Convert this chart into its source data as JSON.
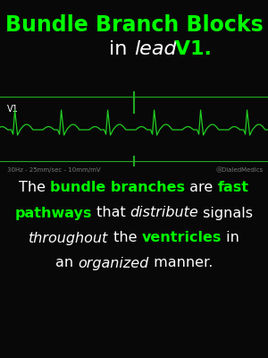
{
  "bg_color": "#080808",
  "green": "#00ff00",
  "white": "#ffffff",
  "title_line1": "Bundle Branch Blocks",
  "ecg_color": "#22cc22",
  "v1_label": "V1",
  "divider_color": "#22aa22",
  "bottom_left_text": "30Hz - 25mm/sec - 10mm/mV",
  "bottom_right_text": "@DialedMedics",
  "desc_line1_parts": [
    {
      "text": "The ",
      "color": "#ffffff",
      "style": "normal",
      "weight": "normal"
    },
    {
      "text": "bundle branches",
      "color": "#00ff00",
      "style": "normal",
      "weight": "bold"
    },
    {
      "text": " are ",
      "color": "#ffffff",
      "style": "normal",
      "weight": "normal"
    },
    {
      "text": "fast",
      "color": "#00ff00",
      "style": "normal",
      "weight": "bold"
    }
  ],
  "desc_line2_parts": [
    {
      "text": "pathways",
      "color": "#00ff00",
      "style": "normal",
      "weight": "bold"
    },
    {
      "text": " that ",
      "color": "#ffffff",
      "style": "normal",
      "weight": "normal"
    },
    {
      "text": "distribute",
      "color": "#ffffff",
      "style": "italic",
      "weight": "normal"
    },
    {
      "text": " signals",
      "color": "#ffffff",
      "style": "normal",
      "weight": "normal"
    }
  ],
  "desc_line3_parts": [
    {
      "text": "throughout",
      "color": "#ffffff",
      "style": "italic",
      "weight": "normal"
    },
    {
      "text": " the ",
      "color": "#ffffff",
      "style": "normal",
      "weight": "normal"
    },
    {
      "text": "ventricles",
      "color": "#00ff00",
      "style": "normal",
      "weight": "bold"
    },
    {
      "text": " in",
      "color": "#ffffff",
      "style": "normal",
      "weight": "normal"
    }
  ],
  "desc_line4_parts": [
    {
      "text": "an ",
      "color": "#ffffff",
      "style": "normal",
      "weight": "normal"
    },
    {
      "text": "organized",
      "color": "#ffffff",
      "style": "italic",
      "weight": "normal"
    },
    {
      "text": " manner.",
      "color": "#ffffff",
      "style": "normal",
      "weight": "normal"
    }
  ],
  "title_fontsize": 17,
  "subtitle_fontsize": 16,
  "desc_fontsize": 11.5,
  "small_fontsize": 5,
  "v1_fontsize": 7
}
